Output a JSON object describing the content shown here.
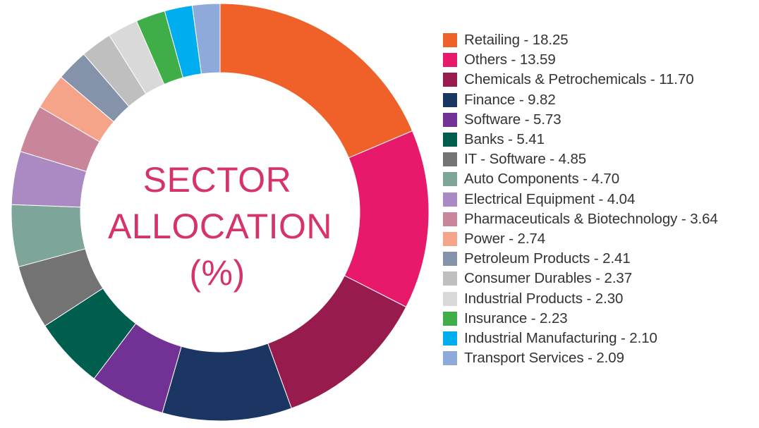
{
  "chart_data": {
    "type": "pie",
    "title_lines": [
      "SECTOR",
      "ALLOCATION",
      "(%)"
    ],
    "legend_position": "right",
    "slices": [
      {
        "name": "Retailing",
        "label": "Retailing - 18.25",
        "value": 18.25,
        "color": "#f0612a"
      },
      {
        "name": "Others",
        "label": "Others - 13.59",
        "value": 13.59,
        "color": "#e8196a"
      },
      {
        "name": "Chemicals & Petrochemicals",
        "label": "Chemicals & Petrochemicals - 11.70",
        "value": 11.7,
        "color": "#981b4e"
      },
      {
        "name": "Finance",
        "label": "Finance - 9.82",
        "value": 9.82,
        "color": "#1c3664"
      },
      {
        "name": "Software",
        "label": "Software - 5.73",
        "value": 5.73,
        "color": "#713195"
      },
      {
        "name": "Banks",
        "label": "Banks - 5.41",
        "value": 5.41,
        "color": "#005e4f"
      },
      {
        "name": "IT - Software",
        "label": "IT - Software - 4.85",
        "value": 4.85,
        "color": "#737373"
      },
      {
        "name": "Auto Components",
        "label": "Auto Components - 4.70",
        "value": 4.7,
        "color": "#7ea59a"
      },
      {
        "name": "Electrical Equipment",
        "label": "Electrical Equipment - 4.04",
        "value": 4.04,
        "color": "#ab8ac3"
      },
      {
        "name": "Pharmaceuticals & Biotechnology",
        "label": "Pharmaceuticals & Biotechnology - 3.64",
        "value": 3.64,
        "color": "#c9869a"
      },
      {
        "name": "Power",
        "label": "Power - 2.74",
        "value": 2.74,
        "color": "#f5a48a"
      },
      {
        "name": "Petroleum Products",
        "label": "Petroleum Products - 2.41",
        "value": 2.41,
        "color": "#8493aa"
      },
      {
        "name": "Consumer Durables",
        "label": "Consumer Durables - 2.37",
        "value": 2.37,
        "color": "#bfbfbf"
      },
      {
        "name": "Industrial Products",
        "label": "Industrial Products - 2.30",
        "value": 2.3,
        "color": "#d9d9d9"
      },
      {
        "name": "Insurance",
        "label": "Insurance - 2.23",
        "value": 2.23,
        "color": "#3fae49"
      },
      {
        "name": "Industrial Manufacturing",
        "label": "Industrial Manufacturing - 2.10",
        "value": 2.1,
        "color": "#00aeef"
      },
      {
        "name": "Transport Services",
        "label": "Transport Services - 2.09",
        "value": 2.09,
        "color": "#8eaadb"
      }
    ]
  }
}
